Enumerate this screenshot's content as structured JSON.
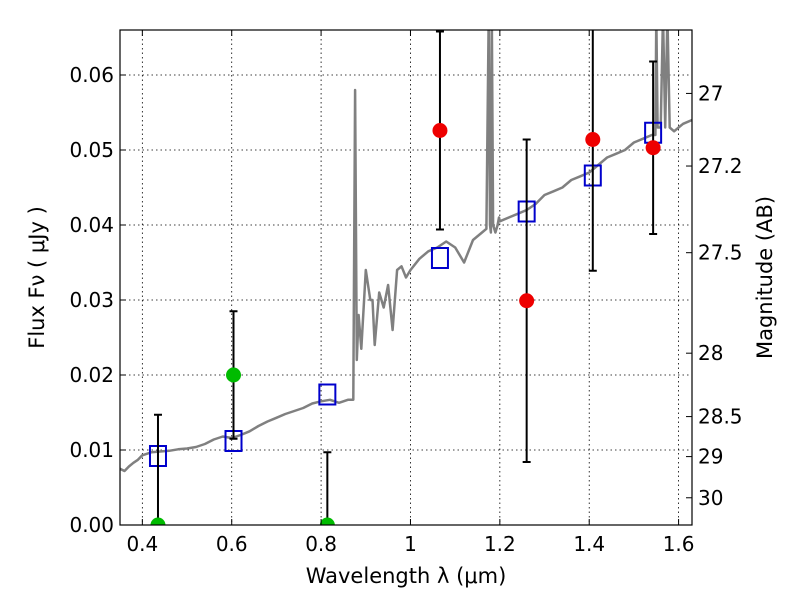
{
  "chart_data": {
    "type": "scatter",
    "xlabel": "Wavelength  λ (μm)",
    "ylabel": "Flux  Fν  ( μJy )",
    "ylabel_right": "Magnitude (AB)",
    "xlim": [
      0.35,
      1.63
    ],
    "ylim": [
      0.0,
      0.066
    ],
    "grid": true,
    "x_ticks": [
      {
        "value": 0.4,
        "label": "0.4"
      },
      {
        "value": 0.6,
        "label": "0.6"
      },
      {
        "value": 0.8,
        "label": "0.8"
      },
      {
        "value": 1.0,
        "label": "1"
      },
      {
        "value": 1.2,
        "label": "1.2"
      },
      {
        "value": 1.4,
        "label": "1.4"
      },
      {
        "value": 1.6,
        "label": "1.6"
      }
    ],
    "y_ticks": [
      {
        "value": 0.0,
        "label": "0.00"
      },
      {
        "value": 0.01,
        "label": "0.01"
      },
      {
        "value": 0.02,
        "label": "0.02"
      },
      {
        "value": 0.03,
        "label": "0.03"
      },
      {
        "value": 0.04,
        "label": "0.04"
      },
      {
        "value": 0.05,
        "label": "0.05"
      },
      {
        "value": 0.06,
        "label": "0.06"
      }
    ],
    "right_ticks": [
      {
        "value": 27.0,
        "label": "27"
      },
      {
        "value": 27.2,
        "label": "27.2"
      },
      {
        "value": 27.5,
        "label": "27.5"
      },
      {
        "value": 28.0,
        "label": "28"
      },
      {
        "value": 28.5,
        "label": "28.5"
      },
      {
        "value": 29.0,
        "label": "29"
      },
      {
        "value": 30.0,
        "label": "30"
      }
    ],
    "model_sed": {
      "color": "#808080",
      "x": [
        0.35,
        0.36,
        0.37,
        0.38,
        0.39,
        0.4,
        0.42,
        0.44,
        0.46,
        0.48,
        0.5,
        0.52,
        0.54,
        0.56,
        0.58,
        0.6,
        0.62,
        0.64,
        0.66,
        0.68,
        0.7,
        0.72,
        0.74,
        0.76,
        0.78,
        0.8,
        0.82,
        0.84,
        0.86,
        0.872,
        0.876,
        0.88,
        0.884,
        0.89,
        0.9,
        0.91,
        0.915,
        0.92,
        0.93,
        0.94,
        0.95,
        0.96,
        0.97,
        0.98,
        0.99,
        1.0,
        1.02,
        1.04,
        1.06,
        1.08,
        1.1,
        1.12,
        1.14,
        1.16,
        1.17,
        1.175,
        1.178,
        1.18,
        1.182,
        1.185,
        1.19,
        1.195,
        1.198,
        1.2,
        1.22,
        1.24,
        1.26,
        1.28,
        1.3,
        1.32,
        1.34,
        1.36,
        1.38,
        1.4,
        1.42,
        1.44,
        1.46,
        1.48,
        1.5,
        1.52,
        1.54,
        1.548,
        1.55,
        1.553,
        1.56,
        1.565,
        1.57,
        1.575,
        1.58,
        1.59,
        1.6,
        1.61,
        1.63
      ],
      "y": [
        0.0075,
        0.0072,
        0.0078,
        0.0083,
        0.0087,
        0.0093,
        0.0097,
        0.0098,
        0.0099,
        0.0101,
        0.0102,
        0.0104,
        0.0108,
        0.0114,
        0.0118,
        0.0116,
        0.012,
        0.0125,
        0.0132,
        0.0138,
        0.0143,
        0.0148,
        0.0152,
        0.0156,
        0.0162,
        0.0165,
        0.0167,
        0.0163,
        0.0167,
        0.0167,
        0.058,
        0.022,
        0.028,
        0.0235,
        0.034,
        0.03,
        0.03,
        0.024,
        0.031,
        0.029,
        0.032,
        0.026,
        0.034,
        0.0345,
        0.033,
        0.034,
        0.0355,
        0.0365,
        0.037,
        0.0378,
        0.037,
        0.035,
        0.038,
        0.039,
        0.0395,
        0.068,
        0.04,
        0.039,
        0.068,
        0.04,
        0.039,
        0.04,
        0.041,
        0.0405,
        0.041,
        0.0415,
        0.042,
        0.0428,
        0.044,
        0.0445,
        0.045,
        0.046,
        0.0465,
        0.047,
        0.048,
        0.049,
        0.0495,
        0.05,
        0.051,
        0.0515,
        0.052,
        0.052,
        0.068,
        0.053,
        0.053,
        0.068,
        0.053,
        0.068,
        0.053,
        0.0525,
        0.053,
        0.0535,
        0.054
      ]
    },
    "series": [
      {
        "marker": "square",
        "color": "#0000cc",
        "points": [
          {
            "x": 0.435,
            "y": 0.0092
          },
          {
            "x": 0.604,
            "y": 0.0112
          },
          {
            "x": 0.814,
            "y": 0.0174
          },
          {
            "x": 1.066,
            "y": 0.0356
          },
          {
            "x": 1.26,
            "y": 0.0418
          },
          {
            "x": 1.408,
            "y": 0.0466
          },
          {
            "x": 1.543,
            "y": 0.0523
          }
        ]
      },
      {
        "marker": "circle",
        "color": "#00bb00",
        "points": [
          {
            "x": 0.435,
            "y": 0.0,
            "err": 0.0147
          },
          {
            "x": 0.604,
            "y": 0.02,
            "err": 0.0085
          },
          {
            "x": 0.814,
            "y": 0.0,
            "err": 0.0097
          }
        ]
      },
      {
        "marker": "circle",
        "color": "#ee0000",
        "points": [
          {
            "x": 1.066,
            "y": 0.0526,
            "err": 0.0132
          },
          {
            "x": 1.26,
            "y": 0.0299,
            "err": 0.0215
          },
          {
            "x": 1.408,
            "y": 0.0514,
            "err": 0.0175
          },
          {
            "x": 1.543,
            "y": 0.0503,
            "err": 0.0115
          }
        ]
      }
    ]
  }
}
